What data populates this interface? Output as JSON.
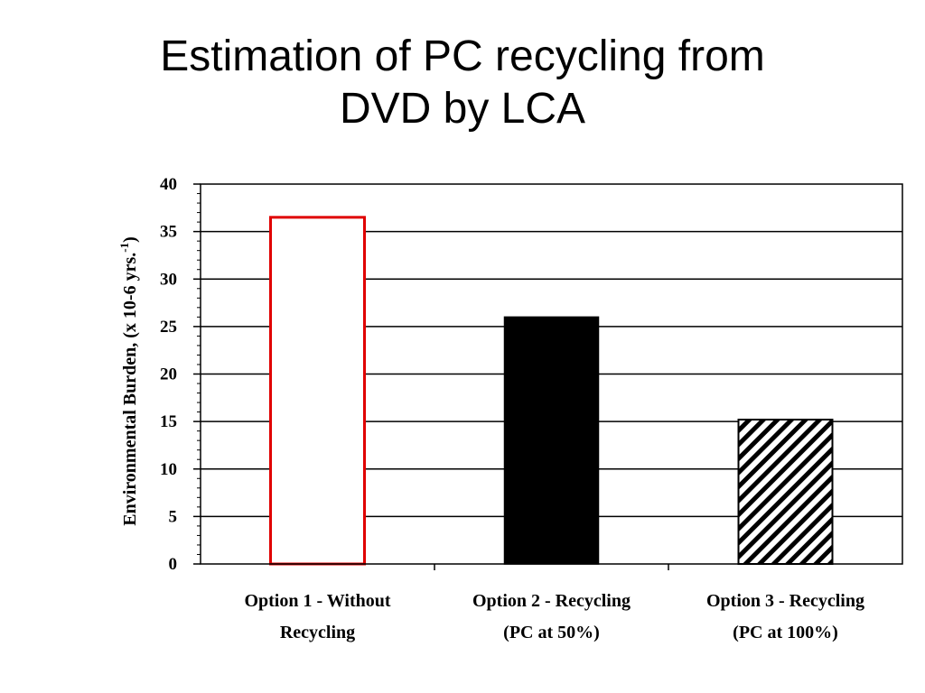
{
  "title_line1": "Estimation of PC recycling from",
  "title_line2": "DVD by LCA",
  "chart_data": {
    "type": "bar",
    "ylabel_main": "Environmental Burden, (x 10-6 yrs.",
    "ylabel_sup": "-1",
    "ylabel_end": ")",
    "ylim": [
      0,
      40
    ],
    "yticks": [
      "0",
      "5",
      "10",
      "15",
      "20",
      "25",
      "30",
      "35",
      "40"
    ],
    "grid": true,
    "categories": [
      [
        "Option 1 - Without",
        "Recycling"
      ],
      [
        "Option 2 - Recycling",
        "(PC at 50%)"
      ],
      [
        "Option 3 - Recycling",
        "(PC at 100%)"
      ]
    ],
    "values": [
      36.5,
      26,
      15.2
    ],
    "styles": [
      "outline-red",
      "solid-black",
      "hatched"
    ],
    "colors": {
      "outline": "#e00000",
      "solid": "#000000",
      "hatch": "#000000"
    }
  }
}
